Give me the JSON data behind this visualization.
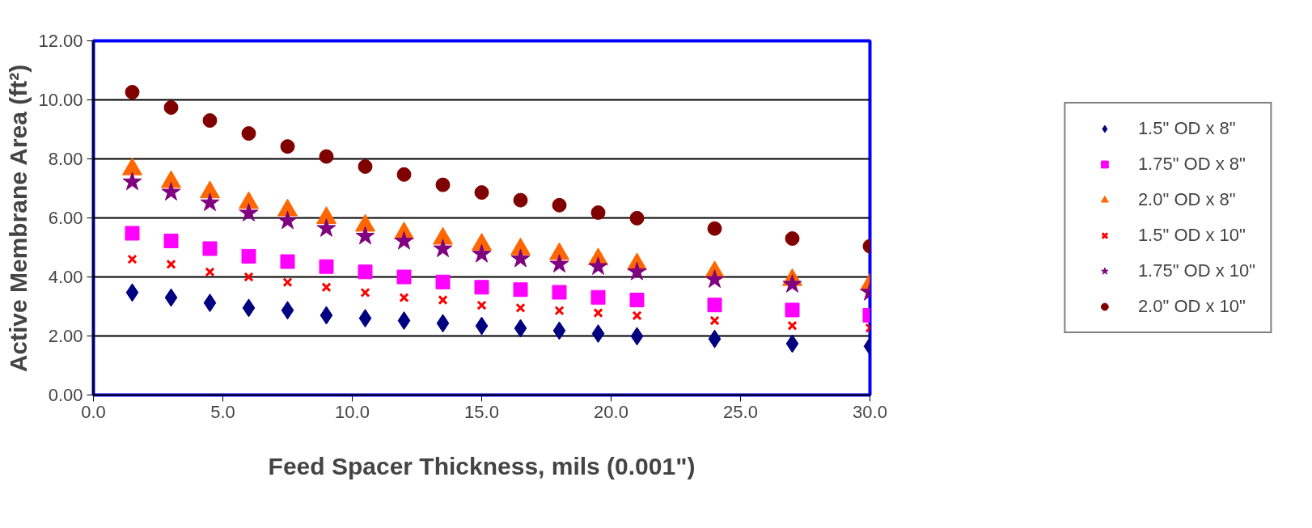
{
  "chart_data": {
    "type": "scatter",
    "xlabel": "Feed Spacer Thickness, mils (0.001\")",
    "ylabel": "Active Membrane Area (ft²)",
    "x": [
      1.5,
      3,
      4.5,
      6,
      7.5,
      9,
      10.5,
      12,
      13.5,
      15,
      16.5,
      18,
      19.5,
      21,
      24,
      27,
      30
    ],
    "xlim": [
      0,
      30
    ],
    "ylim": [
      0,
      12
    ],
    "xticks": [
      {
        "value": 0,
        "label": "0.0"
      },
      {
        "value": 5,
        "label": "5.0"
      },
      {
        "value": 10,
        "label": "10.0"
      },
      {
        "value": 15,
        "label": "15.0"
      },
      {
        "value": 20,
        "label": "20.0"
      },
      {
        "value": 25,
        "label": "25.0"
      },
      {
        "value": 30,
        "label": "30.0"
      }
    ],
    "yticks": [
      {
        "value": 0,
        "label": "0.00"
      },
      {
        "value": 2,
        "label": "2.00"
      },
      {
        "value": 4,
        "label": "4.00"
      },
      {
        "value": 6,
        "label": "6.00"
      },
      {
        "value": 8,
        "label": "8.00"
      },
      {
        "value": 10,
        "label": "10.00"
      },
      {
        "value": 12,
        "label": "12.00"
      }
    ],
    "grid": "y",
    "legend": "right",
    "series": [
      {
        "name": "1.5\" OD x 8\"",
        "color": "#000080",
        "marker": "diamond",
        "values": [
          3.47,
          3.3,
          3.12,
          2.95,
          2.87,
          2.7,
          2.6,
          2.52,
          2.43,
          2.34,
          2.26,
          2.18,
          2.08,
          1.99,
          1.9,
          1.74,
          1.65
        ]
      },
      {
        "name": "1.75\" OD x 8\"",
        "color": "#ff00ff",
        "marker": "square",
        "values": [
          5.48,
          5.22,
          4.96,
          4.7,
          4.52,
          4.35,
          4.17,
          4.0,
          3.83,
          3.65,
          3.57,
          3.48,
          3.31,
          3.22,
          3.05,
          2.88,
          2.7
        ]
      },
      {
        "name": "2.0\" OD x 8\"",
        "color": "#ff6600",
        "marker": "triangle",
        "values": [
          7.65,
          7.22,
          6.87,
          6.51,
          6.26,
          6.0,
          5.74,
          5.48,
          5.3,
          5.1,
          4.94,
          4.78,
          4.6,
          4.43,
          4.16,
          3.9,
          3.74
        ]
      },
      {
        "name": "1.5\" OD x 10\"",
        "color": "#ff0000",
        "marker": "cross",
        "values": [
          4.6,
          4.43,
          4.17,
          4.0,
          3.82,
          3.65,
          3.47,
          3.3,
          3.22,
          3.04,
          2.95,
          2.86,
          2.78,
          2.69,
          2.52,
          2.35,
          2.27
        ]
      },
      {
        "name": "1.75\" OD x 10\"",
        "color": "#800080",
        "marker": "star",
        "values": [
          7.22,
          6.87,
          6.51,
          6.16,
          5.9,
          5.64,
          5.38,
          5.21,
          4.95,
          4.77,
          4.61,
          4.43,
          4.35,
          4.17,
          3.91,
          3.75,
          3.48
        ]
      },
      {
        "name": "2.0\" OD x 10\"",
        "color": "#800000",
        "marker": "circle",
        "values": [
          10.26,
          9.74,
          9.3,
          8.86,
          8.42,
          8.08,
          7.74,
          7.47,
          7.12,
          6.86,
          6.6,
          6.43,
          6.18,
          5.99,
          5.64,
          5.3,
          5.04
        ]
      }
    ]
  }
}
